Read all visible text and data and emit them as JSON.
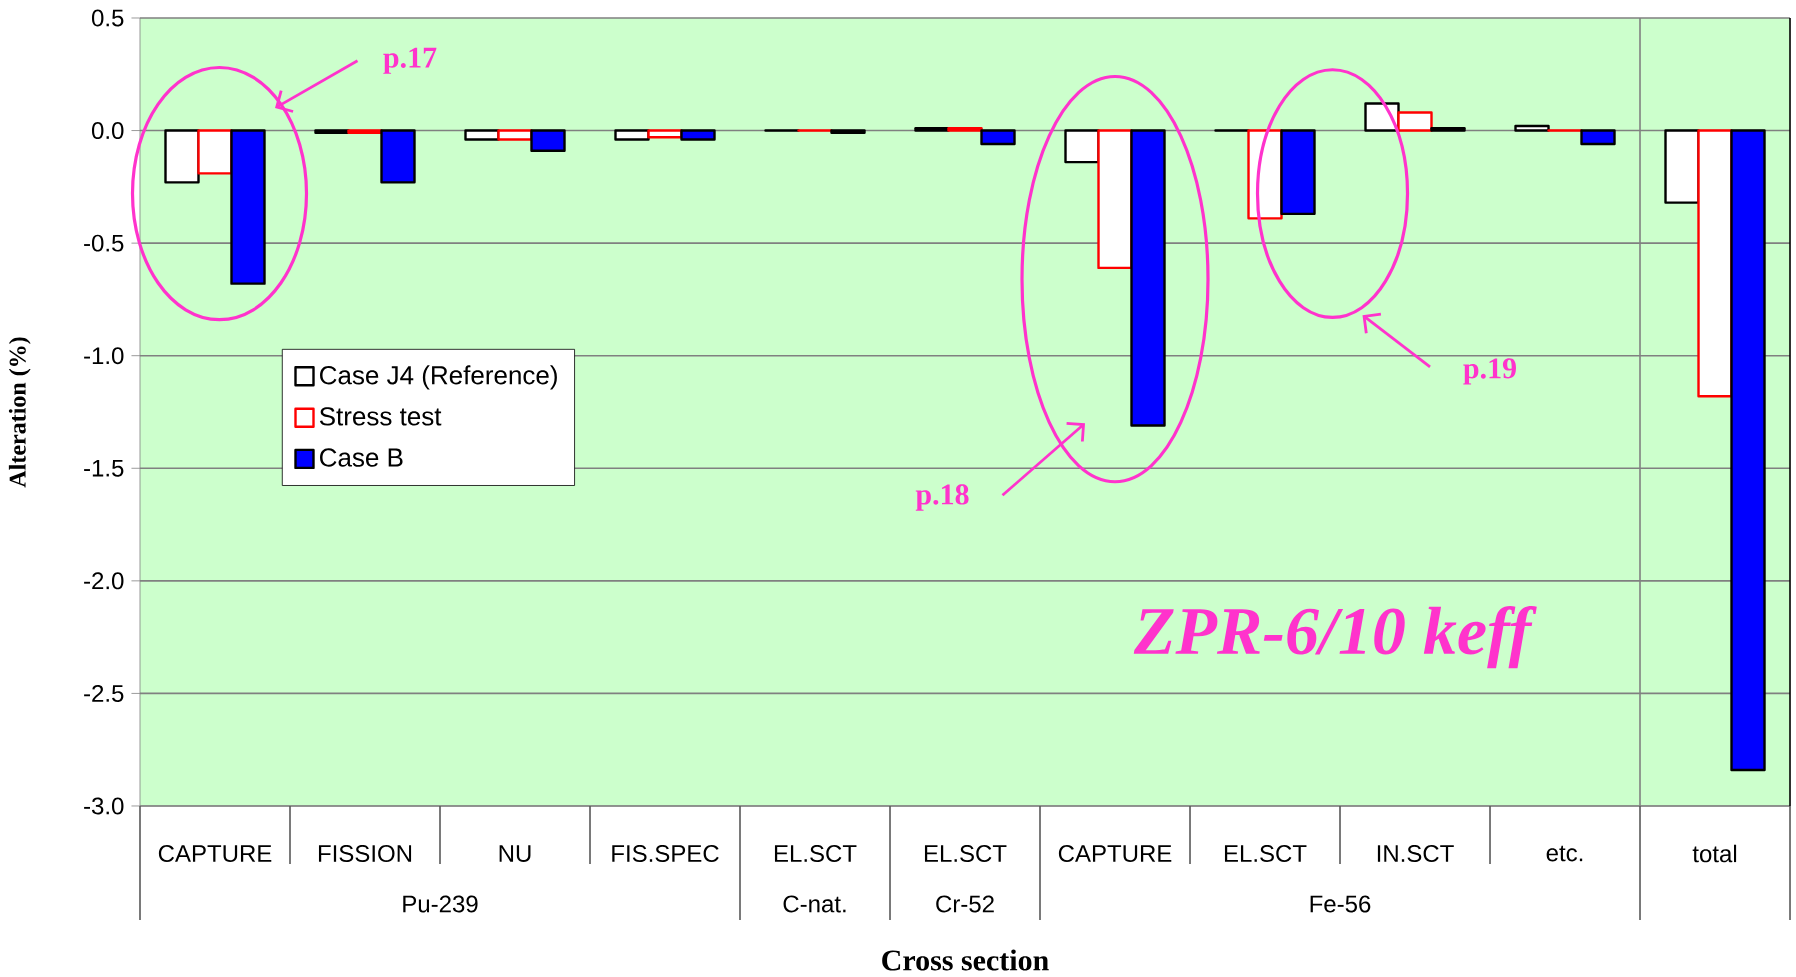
{
  "chart_data": {
    "type": "bar",
    "xlabel": "Cross section",
    "ylabel": "Alteration (%)",
    "categories": [
      "CAPTURE",
      "FISSION",
      "NU",
      "FIS.SPEC",
      "EL.SCT",
      "EL.SCT",
      "CAPTURE",
      "EL.SCT",
      "IN.SCT",
      "etc.",
      "total"
    ],
    "series": [
      {
        "name": "Case J4 (Reference)",
        "color": "#000000",
        "values": [
          -0.23,
          -0.01,
          -0.04,
          -0.04,
          0,
          0.01,
          -0.14,
          0,
          0.12,
          0.02,
          -0.32
        ]
      },
      {
        "name": "Stress test",
        "color": "#ff0000",
        "values": [
          -0.19,
          -0.01,
          -0.04,
          -0.03,
          0,
          0.01,
          -0.61,
          -0.39,
          0.08,
          0,
          -1.18
        ]
      },
      {
        "name": "Case B",
        "color": "#0000ff",
        "values": [
          -0.68,
          -0.23,
          -0.09,
          -0.04,
          -0.01,
          -0.06,
          -1.31,
          -0.37,
          0.01,
          -0.06,
          -2.84
        ]
      }
    ],
    "ylim": [
      -3,
      0.5
    ],
    "yticks": [
      {
        "value": -3,
        "label": "-3.0"
      },
      {
        "value": -2.5,
        "label": "-2.5"
      },
      {
        "value": -2,
        "label": "-2.0"
      },
      {
        "value": -1.5,
        "label": "-1.5"
      },
      {
        "value": -1,
        "label": "-1.0"
      },
      {
        "value": -0.5,
        "label": "-0.5"
      },
      {
        "value": 0,
        "label": "0.0"
      },
      {
        "value": 0.5,
        "label": "0.5"
      }
    ],
    "grid": "y",
    "legend": "left",
    "annotations": [
      "p.17",
      "p.18",
      "p.19",
      "ZPR-6/10  keff",
      "Pu-239",
      "C-nat.",
      "Cr-52",
      "Fe-56"
    ]
  }
}
